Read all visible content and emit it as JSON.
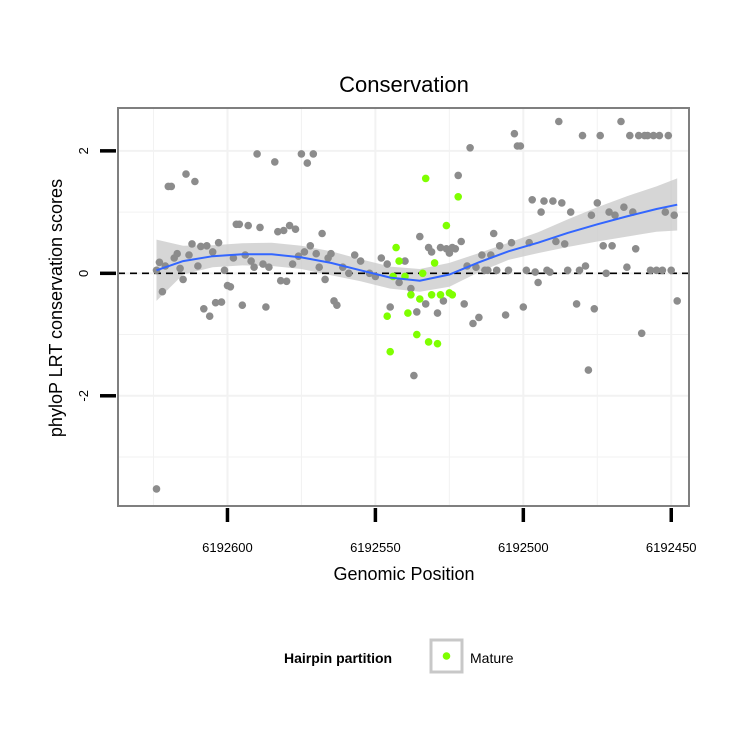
{
  "chart_data": {
    "type": "scatter",
    "title": "Conservation",
    "xlabel": "Genomic Position",
    "ylabel": "phyloP LRT conservation scores",
    "x_reversed": true,
    "xlim": [
      6192637,
      6192444
    ],
    "ylim": [
      -3.8,
      2.7
    ],
    "x_ticks": [
      6192600,
      6192550,
      6192500,
      6192450
    ],
    "x_tick_labels": [
      "6192600",
      "6192550",
      "6192500",
      "6192450"
    ],
    "y_ticks": [
      2,
      0,
      -2
    ],
    "y_tick_labels": [
      "2",
      "0",
      "-2"
    ],
    "reference_line_y": 0,
    "grid": true,
    "legend": {
      "title": "Hairpin partition",
      "position": "bottom",
      "entries": [
        {
          "label": "Mature",
          "color": "#7fff00"
        }
      ]
    },
    "colors": {
      "other_points": "#8c8c8c",
      "mature_points": "#7fff00",
      "smooth_line": "#3366ff",
      "confidence_band": "#c8c8c8"
    },
    "series": [
      {
        "name": "",
        "color": "#8c8c8c",
        "points": [
          [
            6192624,
            -3.52
          ],
          [
            6192624,
            0.05
          ],
          [
            6192623,
            0.18
          ],
          [
            6192622,
            -0.3
          ],
          [
            6192621,
            0.12
          ],
          [
            6192620,
            1.42
          ],
          [
            6192619,
            1.42
          ],
          [
            6192618,
            0.25
          ],
          [
            6192617,
            0.32
          ],
          [
            6192616,
            0.08
          ],
          [
            6192615,
            -0.1
          ],
          [
            6192614,
            1.62
          ],
          [
            6192613,
            0.3
          ],
          [
            6192612,
            0.48
          ],
          [
            6192611,
            1.5
          ],
          [
            6192610,
            0.12
          ],
          [
            6192609,
            0.44
          ],
          [
            6192608,
            -0.58
          ],
          [
            6192607,
            0.45
          ],
          [
            6192606,
            -0.7
          ],
          [
            6192605,
            0.35
          ],
          [
            6192604,
            -0.48
          ],
          [
            6192603,
            0.5
          ],
          [
            6192602,
            -0.47
          ],
          [
            6192601,
            0.05
          ],
          [
            6192600,
            -0.2
          ],
          [
            6192599,
            -0.22
          ],
          [
            6192598,
            0.25
          ],
          [
            6192597,
            0.8
          ],
          [
            6192596,
            0.8
          ],
          [
            6192595,
            -0.52
          ],
          [
            6192594,
            0.3
          ],
          [
            6192593,
            0.78
          ],
          [
            6192592,
            0.2
          ],
          [
            6192591,
            0.1
          ],
          [
            6192590,
            1.95
          ],
          [
            6192589,
            0.75
          ],
          [
            6192588,
            0.15
          ],
          [
            6192587,
            -0.55
          ],
          [
            6192586,
            0.1
          ],
          [
            6192584,
            1.82
          ],
          [
            6192583,
            0.68
          ],
          [
            6192582,
            -0.12
          ],
          [
            6192581,
            0.7
          ],
          [
            6192580,
            -0.13
          ],
          [
            6192579,
            0.78
          ],
          [
            6192578,
            0.15
          ],
          [
            6192577,
            0.72
          ],
          [
            6192576,
            0.28
          ],
          [
            6192575,
            1.95
          ],
          [
            6192574,
            0.35
          ],
          [
            6192573,
            1.8
          ],
          [
            6192572,
            0.45
          ],
          [
            6192571,
            1.95
          ],
          [
            6192570,
            0.32
          ],
          [
            6192569,
            0.1
          ],
          [
            6192568,
            0.65
          ],
          [
            6192567,
            -0.1
          ],
          [
            6192566,
            0.25
          ],
          [
            6192565,
            0.32
          ],
          [
            6192564,
            -0.45
          ],
          [
            6192563,
            -0.52
          ],
          [
            6192561,
            0.1
          ],
          [
            6192559,
            0.0
          ],
          [
            6192557,
            0.3
          ],
          [
            6192555,
            0.2
          ],
          [
            6192552,
            0.0
          ],
          [
            6192550,
            -0.05
          ],
          [
            6192548,
            0.25
          ],
          [
            6192546,
            0.15
          ],
          [
            6192545,
            -0.55
          ],
          [
            6192542,
            -0.15
          ],
          [
            6192540,
            0.2
          ],
          [
            6192538,
            -0.25
          ],
          [
            6192537,
            -1.67
          ],
          [
            6192536,
            -0.63
          ],
          [
            6192535,
            0.6
          ],
          [
            6192533,
            -0.5
          ],
          [
            6192532,
            0.42
          ],
          [
            6192531,
            0.35
          ],
          [
            6192529,
            -0.65
          ],
          [
            6192528,
            0.42
          ],
          [
            6192527,
            -0.45
          ],
          [
            6192526,
            0.4
          ],
          [
            6192525,
            0.33
          ],
          [
            6192524,
            0.42
          ],
          [
            6192523,
            0.4
          ],
          [
            6192522,
            1.6
          ],
          [
            6192521,
            0.52
          ],
          [
            6192520,
            -0.5
          ],
          [
            6192519,
            0.12
          ],
          [
            6192518,
            2.05
          ],
          [
            6192517,
            -0.82
          ],
          [
            6192516,
            0.1
          ],
          [
            6192515,
            -0.72
          ],
          [
            6192514,
            0.3
          ],
          [
            6192513,
            0.05
          ],
          [
            6192512,
            0.05
          ],
          [
            6192511,
            0.3
          ],
          [
            6192510,
            0.65
          ],
          [
            6192509,
            0.05
          ],
          [
            6192508,
            0.45
          ],
          [
            6192506,
            -0.68
          ],
          [
            6192505,
            0.05
          ],
          [
            6192504,
            0.5
          ],
          [
            6192503,
            2.28
          ],
          [
            6192502,
            2.08
          ],
          [
            6192501,
            2.08
          ],
          [
            6192500,
            -0.55
          ],
          [
            6192499,
            0.05
          ],
          [
            6192498,
            0.5
          ],
          [
            6192497,
            1.2
          ],
          [
            6192496,
            0.02
          ],
          [
            6192495,
            -0.15
          ],
          [
            6192494,
            1.0
          ],
          [
            6192493,
            1.18
          ],
          [
            6192492,
            0.05
          ],
          [
            6192491,
            0.02
          ],
          [
            6192490,
            1.18
          ],
          [
            6192489,
            0.52
          ],
          [
            6192488,
            2.48
          ],
          [
            6192487,
            1.15
          ],
          [
            6192486,
            0.48
          ],
          [
            6192485,
            0.05
          ],
          [
            6192484,
            1.0
          ],
          [
            6192482,
            -0.5
          ],
          [
            6192481,
            0.05
          ],
          [
            6192480,
            2.25
          ],
          [
            6192479,
            0.12
          ],
          [
            6192478,
            -1.58
          ],
          [
            6192477,
            0.95
          ],
          [
            6192476,
            -0.58
          ],
          [
            6192475,
            1.15
          ],
          [
            6192474,
            2.25
          ],
          [
            6192473,
            0.45
          ],
          [
            6192472,
            0.0
          ],
          [
            6192471,
            1.0
          ],
          [
            6192470,
            0.45
          ],
          [
            6192469,
            0.95
          ],
          [
            6192467,
            2.48
          ],
          [
            6192466,
            1.08
          ],
          [
            6192465,
            0.1
          ],
          [
            6192464,
            2.25
          ],
          [
            6192463,
            1.0
          ],
          [
            6192462,
            0.4
          ],
          [
            6192461,
            2.25
          ],
          [
            6192460,
            -0.98
          ],
          [
            6192459,
            2.25
          ],
          [
            6192458,
            2.25
          ],
          [
            6192457,
            0.05
          ],
          [
            6192456,
            2.25
          ],
          [
            6192455,
            0.05
          ],
          [
            6192454,
            2.25
          ],
          [
            6192453,
            0.05
          ],
          [
            6192452,
            1.0
          ],
          [
            6192451,
            2.25
          ],
          [
            6192450,
            0.05
          ],
          [
            6192449,
            0.95
          ],
          [
            6192448,
            -0.45
          ]
        ]
      },
      {
        "name": "Mature",
        "color": "#7fff00",
        "points": [
          [
            6192546,
            -0.7
          ],
          [
            6192545,
            -1.28
          ],
          [
            6192544,
            -0.05
          ],
          [
            6192543,
            0.42
          ],
          [
            6192542,
            0.2
          ],
          [
            6192540,
            -0.05
          ],
          [
            6192539,
            -0.65
          ],
          [
            6192538,
            -0.35
          ],
          [
            6192536,
            -1.0
          ],
          [
            6192535,
            -0.42
          ],
          [
            6192534,
            0.0
          ],
          [
            6192533,
            1.55
          ],
          [
            6192532,
            -1.12
          ],
          [
            6192531,
            -0.35
          ],
          [
            6192530,
            0.17
          ],
          [
            6192529,
            -1.15
          ],
          [
            6192528,
            -0.35
          ],
          [
            6192526,
            0.78
          ],
          [
            6192525,
            -0.32
          ],
          [
            6192524,
            -0.35
          ],
          [
            6192522,
            1.25
          ]
        ]
      }
    ],
    "smooth": {
      "type": "loess",
      "color": "#3366ff",
      "x": [
        6192624,
        6192615,
        6192605,
        6192595,
        6192585,
        6192575,
        6192565,
        6192555,
        6192545,
        6192535,
        6192525,
        6192515,
        6192505,
        6192495,
        6192485,
        6192475,
        6192465,
        6192455,
        6192448
      ],
      "y": [
        0.05,
        0.2,
        0.28,
        0.31,
        0.31,
        0.26,
        0.17,
        0.05,
        -0.07,
        -0.12,
        -0.02,
        0.18,
        0.36,
        0.5,
        0.66,
        0.8,
        0.93,
        1.05,
        1.12
      ],
      "band_lower": [
        -0.45,
        -0.02,
        0.1,
        0.13,
        0.12,
        0.07,
        -0.03,
        -0.13,
        -0.25,
        -0.3,
        -0.22,
        0.02,
        0.22,
        0.33,
        0.43,
        0.52,
        0.6,
        0.68,
        0.7
      ],
      "band_upper": [
        0.55,
        0.45,
        0.46,
        0.49,
        0.5,
        0.45,
        0.36,
        0.23,
        0.11,
        0.07,
        0.17,
        0.33,
        0.5,
        0.67,
        0.88,
        1.08,
        1.26,
        1.42,
        1.55
      ]
    }
  }
}
